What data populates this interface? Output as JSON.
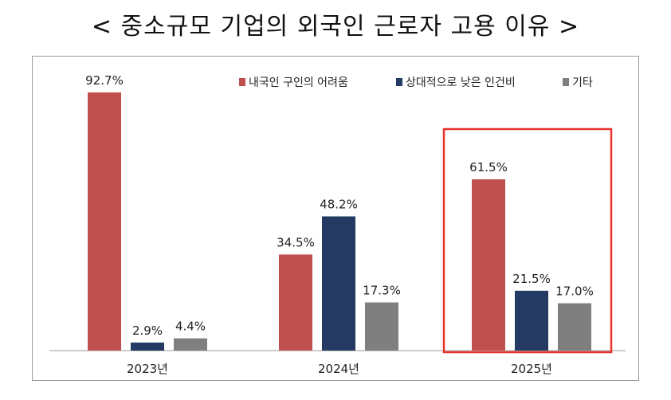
{
  "title": "< 중소규모 기업의 외국인 근로자 고용 이유 >",
  "colors": {
    "series0": "#c0504d",
    "series1": "#243a63",
    "series2": "#7f7f7f",
    "highlight": "#e8332a",
    "axis": "#999999"
  },
  "chart_data": {
    "type": "bar",
    "title": "< 중소규모 기업의 외국인 근로자 고용 이유 >",
    "categories": [
      "2023년",
      "2024년",
      "2025년"
    ],
    "series": [
      {
        "name": "내국인 구인의 어려움",
        "values": [
          92.7,
          34.5,
          61.5
        ],
        "labels": [
          "92.7%",
          "34.5%",
          "61.5%"
        ]
      },
      {
        "name": "상대적으로 낮은 인건비",
        "values": [
          2.9,
          48.2,
          21.5
        ],
        "labels": [
          "2.9%",
          "48.2%",
          "21.5%"
        ]
      },
      {
        "name": "기타",
        "values": [
          4.4,
          17.3,
          17.0
        ],
        "labels": [
          "4.4%",
          "17.3%",
          "17.0%"
        ]
      }
    ],
    "ylim": [
      0,
      100
    ],
    "grid": false,
    "legend": "top-right",
    "highlighted_category": "2025년",
    "xlabel": "",
    "ylabel": ""
  }
}
